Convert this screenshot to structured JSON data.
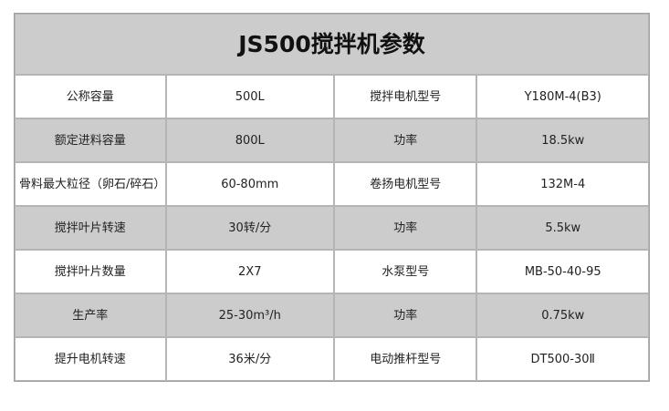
{
  "title": "JS500搅拌机参数",
  "colors": {
    "header_bg": "#cccccc",
    "alt_row_bg": "#cccccc",
    "border": "#b5b5b5"
  },
  "rows": [
    [
      "公称容量",
      "500L",
      "搅拌电机型号",
      "Y180M-4(B3)"
    ],
    [
      "额定进料容量",
      "800L",
      "功率",
      "18.5kw"
    ],
    [
      "骨料最大粒径（卵石/碎石）",
      "60-80mm",
      "卷扬电机型号",
      "132M-4"
    ],
    [
      "搅拌叶片转速",
      "30转/分",
      "功率",
      "5.5kw"
    ],
    [
      "搅拌叶片数量",
      "2X7",
      "水泵型号",
      "MB-50-40-95"
    ],
    [
      "生产率",
      "25-30m³/h",
      "功率",
      "0.75kw"
    ],
    [
      "提升电机转速",
      "36米/分",
      "电动推杆型号",
      "DT500-30Ⅱ"
    ]
  ]
}
